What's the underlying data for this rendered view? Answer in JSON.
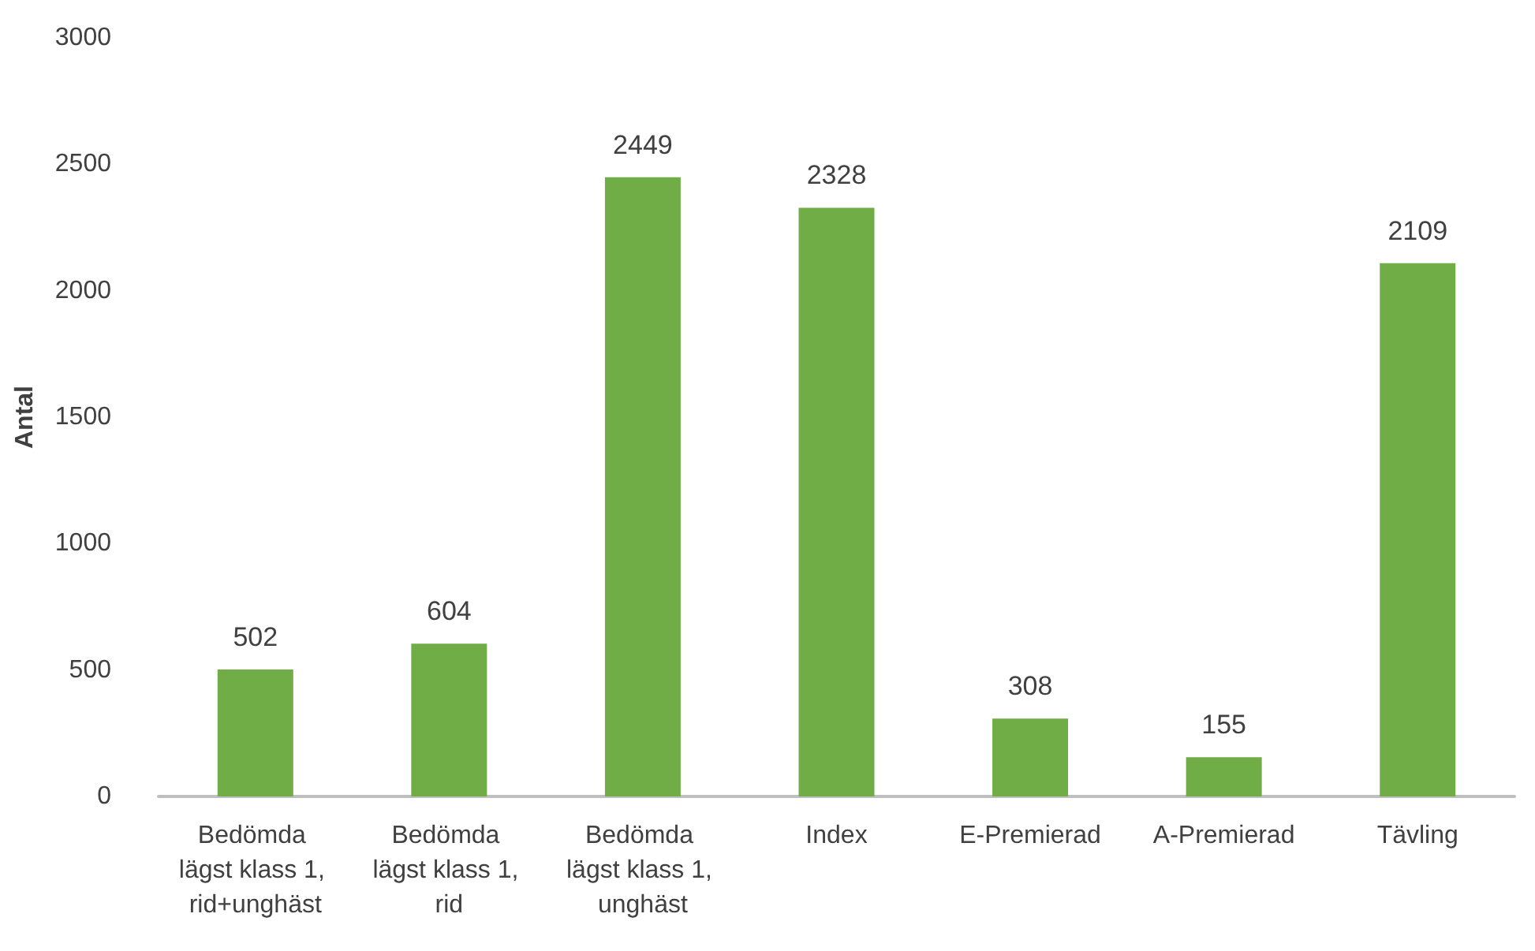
{
  "chart_data": {
    "type": "bar",
    "ylabel": "Antal",
    "categories": [
      "Bedömda lägst klass 1, rid+unghäst",
      "Bedömda lägst klass 1, rid",
      "Bedömda lägst klass 1, unghäst",
      "Index",
      "E-Premierad",
      "A-Premierad",
      "Tävling"
    ],
    "values": [
      502,
      604,
      2449,
      2328,
      308,
      155,
      2109
    ],
    "color": "#70ad47",
    "ylim": [
      0,
      3000
    ],
    "yticks": [
      0,
      500,
      1000,
      1500,
      2000,
      2500,
      3000
    ],
    "grid": false,
    "data_labels": true
  }
}
